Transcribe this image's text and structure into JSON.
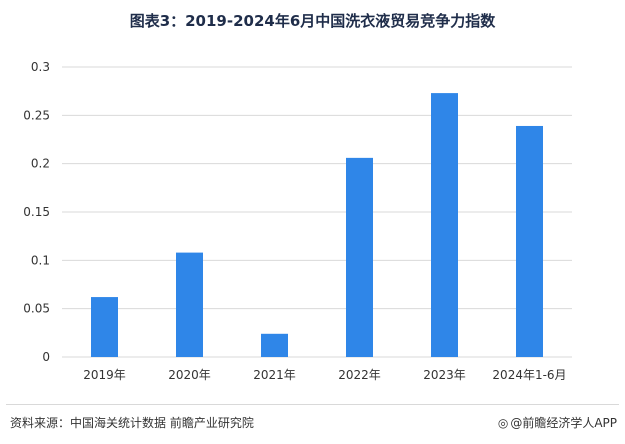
{
  "title": "图表3：2019-2024年6月中国洗衣液贸易竞争力指数",
  "footer": {
    "source": "资料来源：中国海关统计数据 前瞻产业研究院",
    "brand": "@前瞻经济学人APP",
    "brand_icon": "wechat-logo-icon"
  },
  "chart_data": {
    "type": "bar",
    "title": "图表3：2019-2024年6月中国洗衣液贸易竞争力指数",
    "xlabel": "",
    "ylabel": "",
    "categories": [
      "2019年",
      "2020年",
      "2021年",
      "2022年",
      "2023年",
      "2024年1-6月"
    ],
    "values": [
      0.062,
      0.108,
      0.024,
      0.206,
      0.273,
      0.239
    ],
    "ylim": [
      0,
      0.3
    ],
    "yticks": [
      0,
      0.05,
      0.1,
      0.15,
      0.2,
      0.25,
      0.3
    ],
    "ytick_labels": [
      "0",
      "0.05",
      "0.1",
      "0.15",
      "0.2",
      "0.25",
      "0.3"
    ],
    "grid": true,
    "bar_color": "#2f86e8",
    "grid_color": "#d9d9d9"
  }
}
